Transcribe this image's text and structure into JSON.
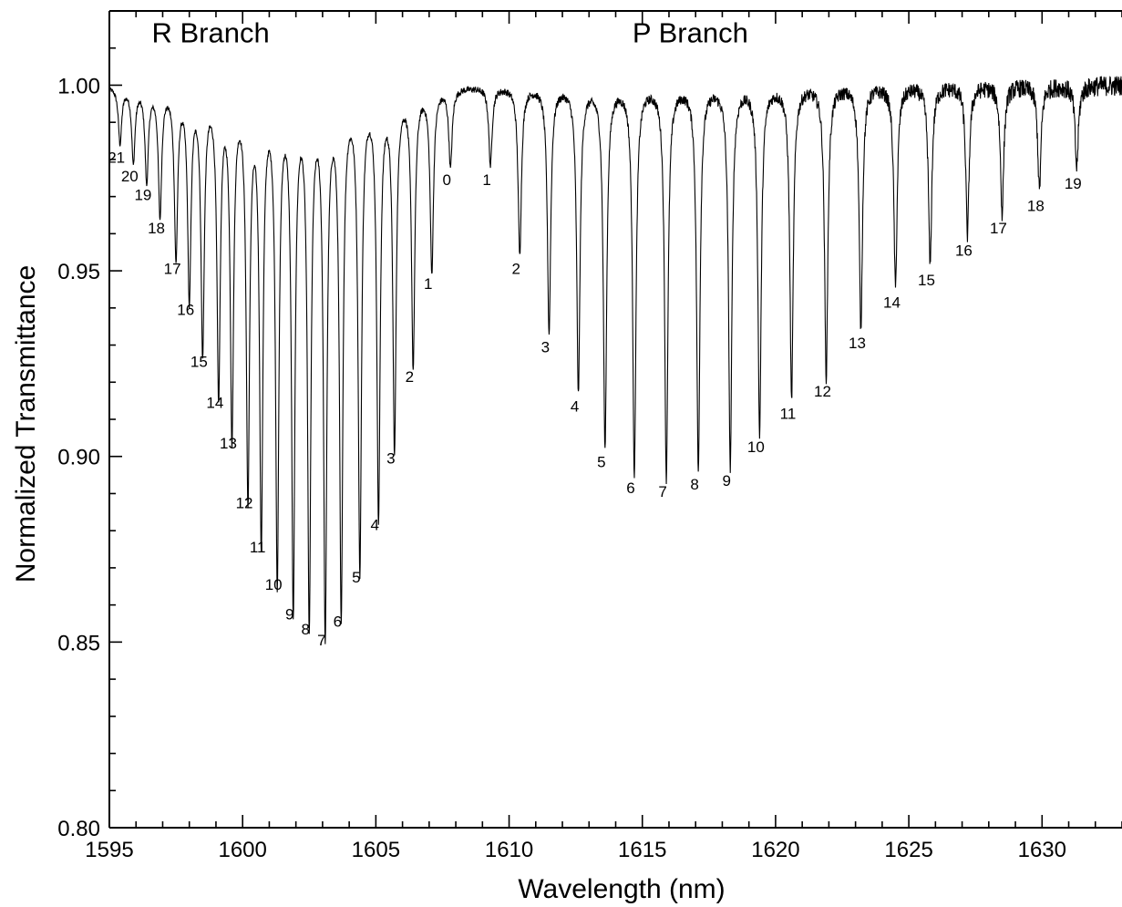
{
  "chart_data": {
    "type": "line",
    "title": "",
    "xlabel": "Wavelength (nm)",
    "ylabel": "Normalized Transmittance",
    "xlim": [
      1595,
      1633
    ],
    "ylim": [
      0.8,
      1.02
    ],
    "x_ticks": [
      1595,
      1600,
      1605,
      1610,
      1615,
      1620,
      1625,
      1630
    ],
    "x_tick_labels": [
      "1595",
      "1600",
      "1605",
      "1610",
      "1615",
      "1620",
      "1625",
      "1630"
    ],
    "y_ticks": [
      0.8,
      0.85,
      0.9,
      0.95,
      1.0
    ],
    "y_tick_labels": [
      "0.80",
      "0.85",
      "0.90",
      "0.95",
      "1.00"
    ],
    "grid": false,
    "baseline": 1.0,
    "annotations": [
      {
        "text": "R Branch",
        "x": 1598.8,
        "y": 1.0115
      },
      {
        "text": "P Branch",
        "x": 1616.8,
        "y": 1.0115
      }
    ],
    "series": [
      {
        "branch": "R",
        "lines": [
          {
            "label": "21",
            "x": 1595.4,
            "min_transmittance": 0.985
          },
          {
            "label": "20",
            "x": 1595.9,
            "min_transmittance": 0.98
          },
          {
            "label": "19",
            "x": 1596.4,
            "min_transmittance": 0.975
          },
          {
            "label": "18",
            "x": 1596.9,
            "min_transmittance": 0.966
          },
          {
            "label": "17",
            "x": 1597.5,
            "min_transmittance": 0.955
          },
          {
            "label": "16",
            "x": 1598.0,
            "min_transmittance": 0.944
          },
          {
            "label": "15",
            "x": 1598.5,
            "min_transmittance": 0.93
          },
          {
            "label": "14",
            "x": 1599.1,
            "min_transmittance": 0.919
          },
          {
            "label": "13",
            "x": 1599.6,
            "min_transmittance": 0.908
          },
          {
            "label": "12",
            "x": 1600.2,
            "min_transmittance": 0.892
          },
          {
            "label": "11",
            "x": 1600.7,
            "min_transmittance": 0.88
          },
          {
            "label": "10",
            "x": 1601.3,
            "min_transmittance": 0.87
          },
          {
            "label": "9",
            "x": 1601.9,
            "min_transmittance": 0.862
          },
          {
            "label": "8",
            "x": 1602.5,
            "min_transmittance": 0.858
          },
          {
            "label": "7",
            "x": 1603.1,
            "min_transmittance": 0.855
          },
          {
            "label": "6",
            "x": 1603.7,
            "min_transmittance": 0.86
          },
          {
            "label": "5",
            "x": 1604.4,
            "min_transmittance": 0.872
          },
          {
            "label": "4",
            "x": 1605.1,
            "min_transmittance": 0.886
          },
          {
            "label": "3",
            "x": 1605.7,
            "min_transmittance": 0.904
          },
          {
            "label": "2",
            "x": 1606.4,
            "min_transmittance": 0.926
          },
          {
            "label": "1",
            "x": 1607.1,
            "min_transmittance": 0.951
          },
          {
            "label": "0",
            "x": 1607.8,
            "min_transmittance": 0.979
          }
        ]
      },
      {
        "branch": "P",
        "lines": [
          {
            "label": "1",
            "x": 1609.3,
            "min_transmittance": 0.979
          },
          {
            "label": "2",
            "x": 1610.4,
            "min_transmittance": 0.955
          },
          {
            "label": "3",
            "x": 1611.5,
            "min_transmittance": 0.934
          },
          {
            "label": "4",
            "x": 1612.6,
            "min_transmittance": 0.918
          },
          {
            "label": "5",
            "x": 1613.6,
            "min_transmittance": 0.903
          },
          {
            "label": "6",
            "x": 1614.7,
            "min_transmittance": 0.896
          },
          {
            "label": "7",
            "x": 1615.9,
            "min_transmittance": 0.895
          },
          {
            "label": "8",
            "x": 1617.1,
            "min_transmittance": 0.897
          },
          {
            "label": "9",
            "x": 1618.3,
            "min_transmittance": 0.898
          },
          {
            "label": "10",
            "x": 1619.4,
            "min_transmittance": 0.907
          },
          {
            "label": "11",
            "x": 1620.6,
            "min_transmittance": 0.916
          },
          {
            "label": "12",
            "x": 1621.9,
            "min_transmittance": 0.922
          },
          {
            "label": "13",
            "x": 1623.2,
            "min_transmittance": 0.935
          },
          {
            "label": "14",
            "x": 1624.5,
            "min_transmittance": 0.946
          },
          {
            "label": "15",
            "x": 1625.8,
            "min_transmittance": 0.952
          },
          {
            "label": "16",
            "x": 1627.2,
            "min_transmittance": 0.96
          },
          {
            "label": "17",
            "x": 1628.5,
            "min_transmittance": 0.966
          },
          {
            "label": "18",
            "x": 1629.9,
            "min_transmittance": 0.972
          },
          {
            "label": "19",
            "x": 1631.3,
            "min_transmittance": 0.978
          }
        ]
      }
    ]
  }
}
